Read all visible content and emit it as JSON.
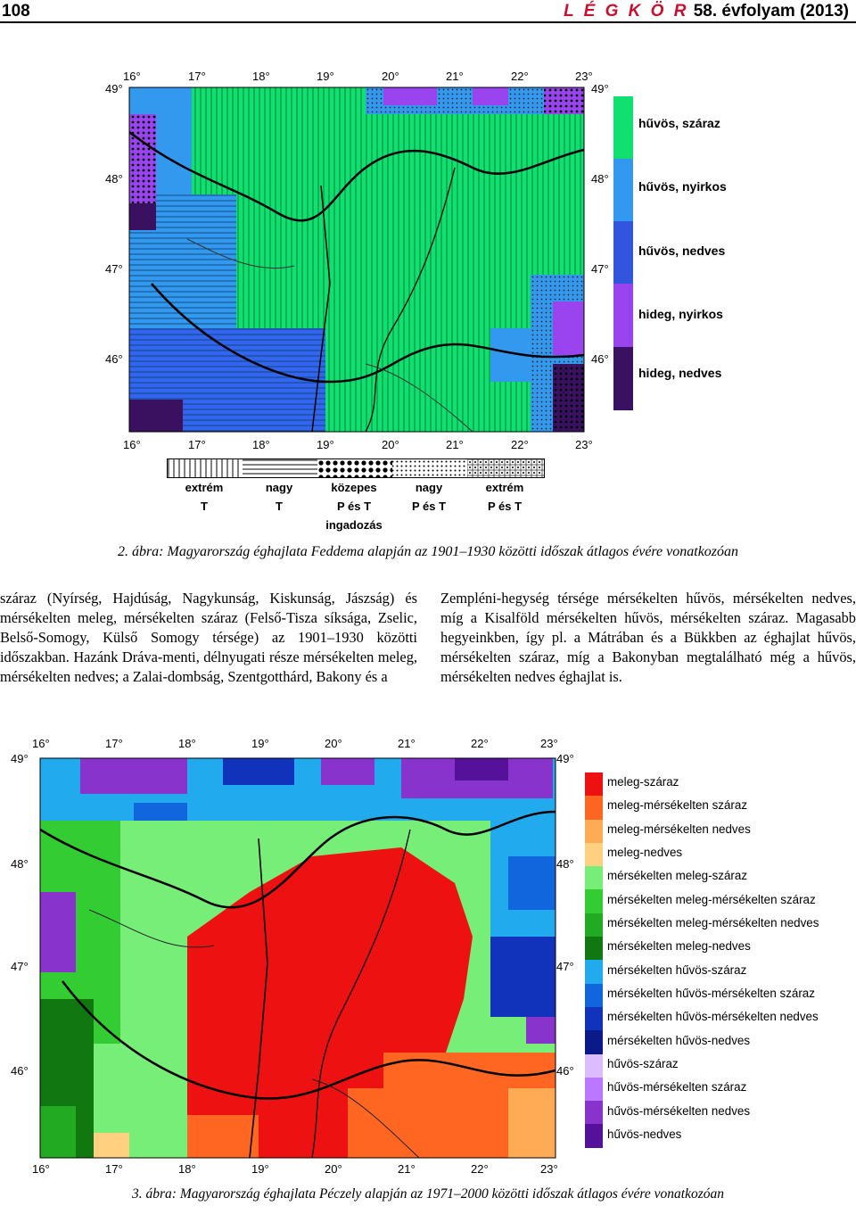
{
  "header": {
    "page_number": "108",
    "journal": "L É G K Ö R",
    "volume": "58. évfolyam (2013)"
  },
  "figure2": {
    "lat_ticks": [
      "49°",
      "48°",
      "47°",
      "46°"
    ],
    "lon_ticks": [
      "16°",
      "17°",
      "18°",
      "19°",
      "20°",
      "21°",
      "22°",
      "23°"
    ],
    "legend": [
      {
        "label": "hűvös, száraz",
        "color": "#10e070"
      },
      {
        "label": "hűvös, nyirkos",
        "color": "#3399ee"
      },
      {
        "label": "hűvös, nedves",
        "color": "#3355dd"
      },
      {
        "label": "hideg, nyirkos",
        "color": "#9944ee"
      },
      {
        "label": "hideg, nedves",
        "color": "#3a1060"
      }
    ],
    "patterns": [
      {
        "line1": "extrém",
        "line2": "T"
      },
      {
        "line1": "nagy",
        "line2": "T"
      },
      {
        "line1": "közepes",
        "line2": "P és T",
        "line3": "ingadozás"
      },
      {
        "line1": "nagy",
        "line2": "P és T"
      },
      {
        "line1": "extrém",
        "line2": "P és T"
      }
    ],
    "caption": "2. ábra: Magyarország éghajlata Feddema alapján az 1901–1930 közötti időszak átlagos évére vonatkozóan"
  },
  "text": {
    "left": "száraz (Nyírség, Hajdúság, Nagykunság, Kiskunság, Jászság) és mérsékelten meleg, mérsékelten száraz (Felső-Tisza síksága, Zselic, Belső-Somogy, Külső Somogy térsége) az 1901–1930 közötti időszakban. Hazánk Dráva-menti, délnyugati része mérsékelten meleg, mérsékelten nedves; a Zalai-dombság, Szentgotthárd, Bakony és a",
    "right": "Zempléni-hegység térsége mérsékelten hűvös, mérsékelten nedves, míg a Kisalföld mérsékelten hűvös, mérsékelten száraz. Magasabb hegyeinkben, így pl. a Mátrában és a Bükkben az éghajlat hűvös, mérsékelten száraz, míg a Bakonyban megtalálható még a hűvös, mérsékelten nedves éghajlat is."
  },
  "figure3": {
    "lat_ticks": [
      "49°",
      "48°",
      "47°",
      "46°"
    ],
    "lon_ticks": [
      "16°",
      "17°",
      "18°",
      "19°",
      "20°",
      "21°",
      "22°",
      "23°"
    ],
    "legend": [
      {
        "label": "meleg-száraz",
        "color": "#ee1111"
      },
      {
        "label": "meleg-mérsékelten száraz",
        "color": "#ff6622"
      },
      {
        "label": "meleg-mérsékelten nedves",
        "color": "#ffaa55"
      },
      {
        "label": "meleg-nedves",
        "color": "#ffd080"
      },
      {
        "label": "mérsékelten meleg-száraz",
        "color": "#77ee77"
      },
      {
        "label": "mérsékelten meleg-mérsékelten száraz",
        "color": "#33cc33"
      },
      {
        "label": "mérsékelten meleg-mérsékelten nedves",
        "color": "#22aa22"
      },
      {
        "label": "mérsékelten meleg-nedves",
        "color": "#117711"
      },
      {
        "label": "mérsékelten hűvös-száraz",
        "color": "#22aaee"
      },
      {
        "label": "mérsékelten hűvös-mérsékelten száraz",
        "color": "#1166dd"
      },
      {
        "label": "mérsékelten hűvös-mérsékelten nedves",
        "color": "#1133bb"
      },
      {
        "label": "mérsékelten hűvös-nedves",
        "color": "#0a1a88"
      },
      {
        "label": "hűvös-száraz",
        "color": "#ddbbff"
      },
      {
        "label": "hűvös-mérsékelten száraz",
        "color": "#bb77ff"
      },
      {
        "label": "hűvös-mérsékelten nedves",
        "color": "#8833cc"
      },
      {
        "label": "hűvös-nedves",
        "color": "#551199"
      }
    ],
    "caption": "3. ábra: Magyarország éghajlata Péczely alapján az 1971–2000 közötti időszak átlagos évére vonatkozóan"
  }
}
